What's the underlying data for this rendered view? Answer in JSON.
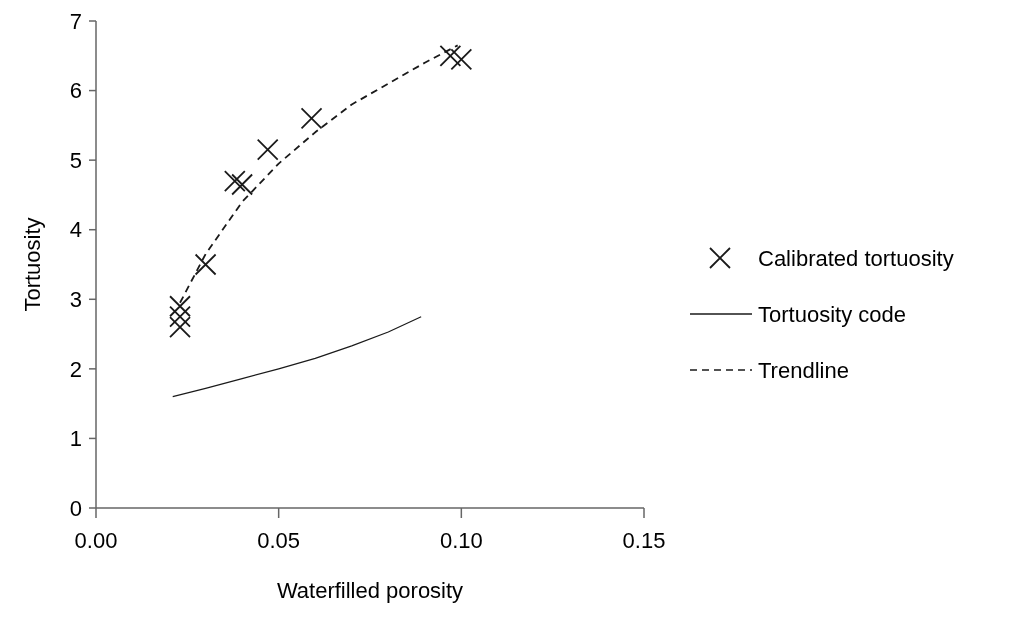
{
  "chart_data": {
    "type": "scatter",
    "xlabel": "Waterfilled porosity",
    "ylabel": "Tortuosity",
    "xlim": [
      0,
      0.15
    ],
    "ylim": [
      0,
      7
    ],
    "xticks": [
      {
        "value": 0,
        "label": "0.00"
      },
      {
        "value": 0.05,
        "label": "0.05"
      },
      {
        "value": 0.1,
        "label": "0.10"
      },
      {
        "value": 0.15,
        "label": "0.15"
      }
    ],
    "yticks": [
      0,
      1,
      2,
      3,
      4,
      5,
      6,
      7
    ],
    "legend": "right",
    "grid": false,
    "series": [
      {
        "name": "Calibrated tortuosity",
        "marker": "cross",
        "color": "#1a1a1a",
        "x": [
          0.023,
          0.023,
          0.023,
          0.03,
          0.038,
          0.04,
          0.047,
          0.059,
          0.097,
          0.1
        ],
        "values": [
          2.9,
          2.75,
          2.6,
          3.5,
          4.7,
          4.65,
          5.15,
          5.6,
          6.5,
          6.45
        ]
      },
      {
        "name": "Tortuosity code",
        "type": "line",
        "line_style": "solid",
        "color": "#1a1a1a",
        "x": [
          0.021,
          0.03,
          0.04,
          0.05,
          0.06,
          0.07,
          0.08,
          0.089
        ],
        "values": [
          1.6,
          1.72,
          1.86,
          2.0,
          2.15,
          2.33,
          2.53,
          2.75
        ]
      },
      {
        "name": "Trendline",
        "type": "line",
        "line_style": "dashed",
        "color": "#1a1a1a",
        "x": [
          0.023,
          0.03,
          0.04,
          0.05,
          0.06,
          0.07,
          0.08,
          0.09,
          0.099
        ],
        "values": [
          2.95,
          3.65,
          4.4,
          4.95,
          5.4,
          5.8,
          6.1,
          6.4,
          6.65
        ]
      }
    ]
  }
}
